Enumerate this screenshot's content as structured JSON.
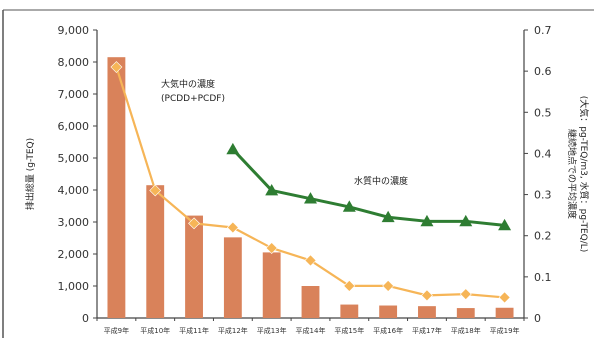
{
  "chart_data": {
    "type": "bar",
    "categories": [
      "平成9年",
      "平成10年",
      "平成11年",
      "平成12年",
      "平成13年",
      "平成14年",
      "平成15年",
      "平成16年",
      "平成17年",
      "平成18年",
      "平成19年"
    ],
    "series": [
      {
        "kind": "bar",
        "axis": "left",
        "color": "#d9825a",
        "values": [
          8150,
          4150,
          3200,
          2520,
          2050,
          1000,
          420,
          390,
          370,
          310,
          320
        ]
      },
      {
        "name": "大気中の濃度\n(PCDD+PCDF)",
        "kind": "line",
        "axis": "right",
        "color": "#f6b557",
        "marker": "diamond",
        "values": [
          0.61,
          0.31,
          0.23,
          0.22,
          0.17,
          0.14,
          0.078,
          0.078,
          0.055,
          0.058,
          0.05
        ]
      },
      {
        "name": "水質中の濃度",
        "kind": "line",
        "axis": "right",
        "color": "#2e7d32",
        "marker": "triangle",
        "values": [
          null,
          null,
          null,
          0.41,
          0.31,
          0.29,
          0.27,
          0.245,
          0.235,
          0.235,
          0.225
        ]
      }
    ],
    "y_left": {
      "label": "排出総量 (g-TEQ)",
      "range": [
        0,
        9000
      ],
      "ticks": [
        "0",
        "1,000",
        "2,000",
        "3,000",
        "4,000",
        "5,000",
        "6,000",
        "7,000",
        "8,000",
        "9,000"
      ]
    },
    "y_right": {
      "label": "継続地点での平均濃度\n(大気：pg-TEQ/m3, 水質：pg-TEQ/L)",
      "range": [
        0,
        0.7
      ],
      "ticks": [
        "0",
        "0.1",
        "0.2",
        "0.3",
        "0.4",
        "0.5",
        "0.6",
        "0.7"
      ]
    },
    "annotations": {
      "air_label_line1": "大気中の濃度",
      "air_label_line2": "(PCDD+PCDF)",
      "water_label": "水質中の濃度"
    },
    "grid": false,
    "legend": "inline annotations"
  }
}
